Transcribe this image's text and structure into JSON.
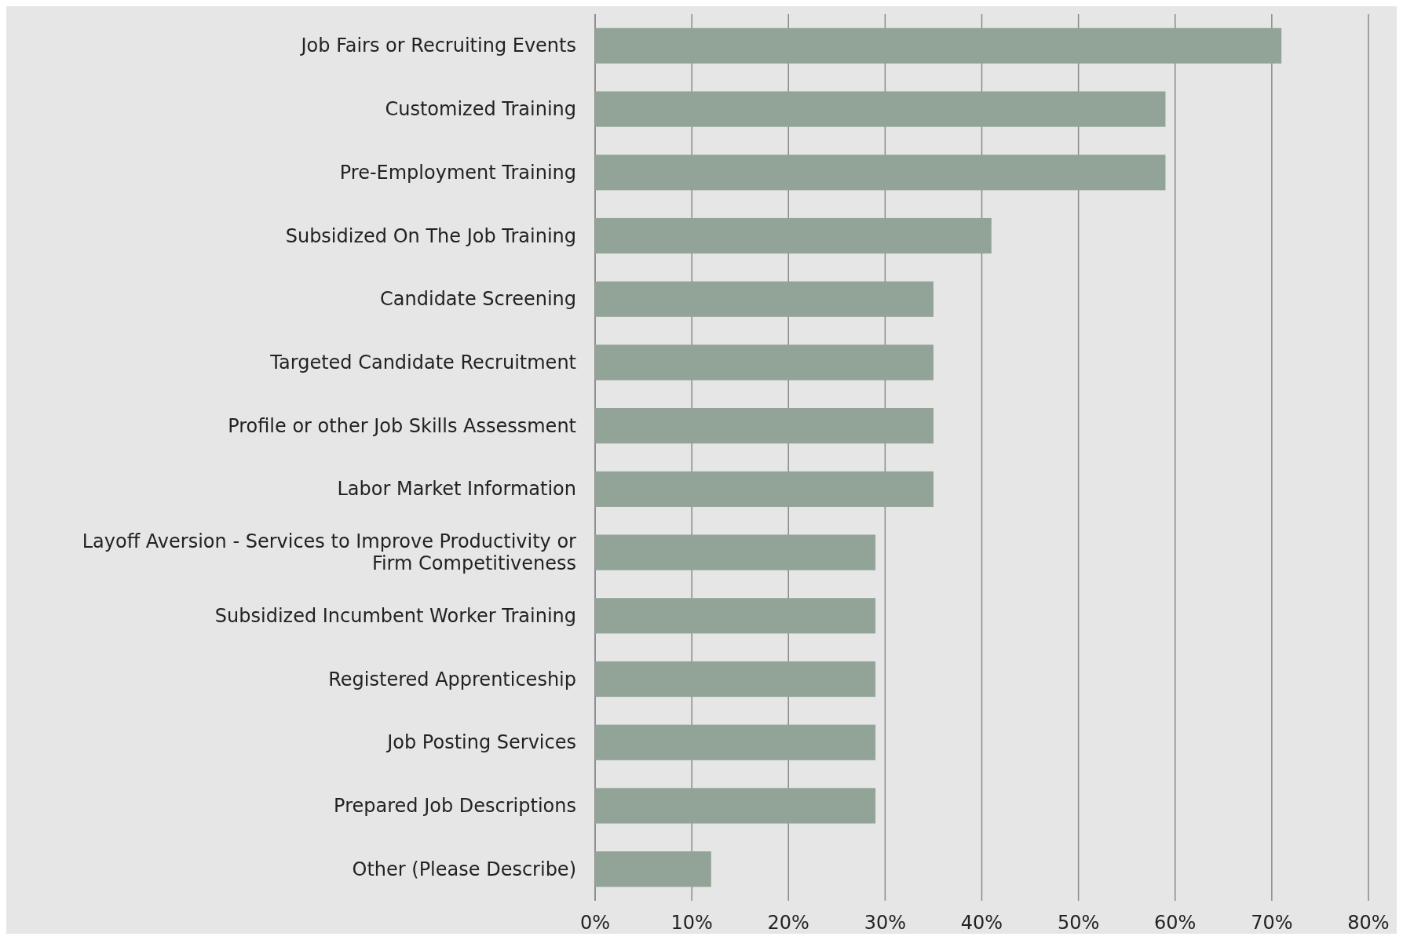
{
  "chart_data": {
    "type": "bar",
    "orientation": "horizontal",
    "categories": [
      "Job Fairs or Recruiting Events",
      "Customized Training",
      "Pre-Employment Training",
      "Subsidized On The Job Training",
      "Candidate Screening",
      "Targeted Candidate Recruitment",
      "Profile or other Job Skills Assessment",
      "Labor Market Information",
      "Layoff Aversion - Services to Improve Productivity or Firm Competitiveness",
      "Subsidized Incumbent Worker Training",
      "Registered Apprenticeship",
      "Job Posting Services",
      "Prepared Job Descriptions",
      "Other (Please Describe)"
    ],
    "values": [
      71,
      59,
      59,
      41,
      35,
      35,
      35,
      35,
      29,
      29,
      29,
      29,
      29,
      12
    ],
    "color": "#92a397",
    "xlim": [
      0,
      80
    ],
    "xticks": [
      {
        "value": 0,
        "label": "0%"
      },
      {
        "value": 10,
        "label": "10%"
      },
      {
        "value": 20,
        "label": "20%"
      },
      {
        "value": 30,
        "label": "30%"
      },
      {
        "value": 40,
        "label": "40%"
      },
      {
        "value": 50,
        "label": "50%"
      },
      {
        "value": 60,
        "label": "60%"
      },
      {
        "value": 70,
        "label": "70%"
      },
      {
        "value": 80,
        "label": "80%"
      }
    ],
    "grid": "x"
  }
}
